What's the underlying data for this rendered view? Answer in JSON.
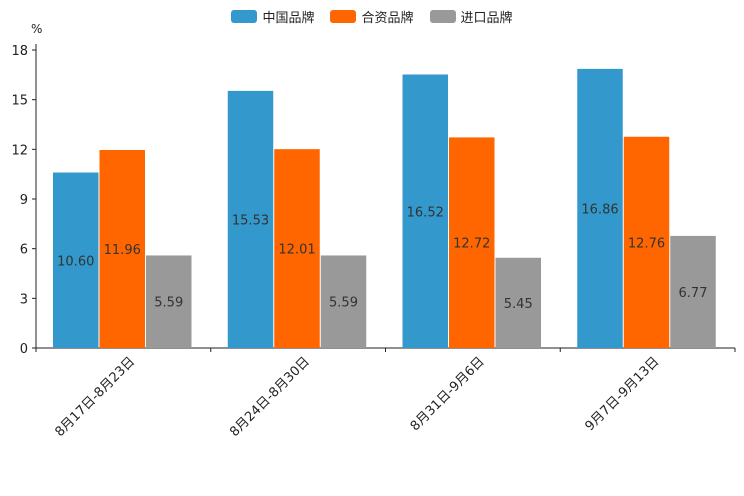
{
  "chart_data": {
    "type": "bar",
    "unit_label": "%",
    "categories": [
      "8月17日-8月23日",
      "8月24日-8月30日",
      "8月31日-9月6日",
      "9月7日-9月13日"
    ],
    "series": [
      {
        "name": "中国品牌",
        "color": "#3399CC",
        "values": [
          10.6,
          15.53,
          16.52,
          16.86
        ],
        "labels": [
          "10.60",
          "15.53",
          "16.52",
          "16.86"
        ]
      },
      {
        "name": "合资品牌",
        "color": "#FF6600",
        "values": [
          11.96,
          12.01,
          12.72,
          12.76
        ],
        "labels": [
          "11.96",
          "12.01",
          "12.72",
          "12.76"
        ]
      },
      {
        "name": "进口品牌",
        "color": "#999999",
        "values": [
          5.59,
          5.59,
          5.45,
          6.77
        ],
        "labels": [
          "5.59",
          "5.59",
          "5.45",
          "6.77"
        ]
      }
    ],
    "yticks": [
      "0",
      "3",
      "6",
      "9",
      "12",
      "15",
      "18"
    ],
    "ylim": [
      0,
      18
    ],
    "legend_position": "top-center"
  }
}
